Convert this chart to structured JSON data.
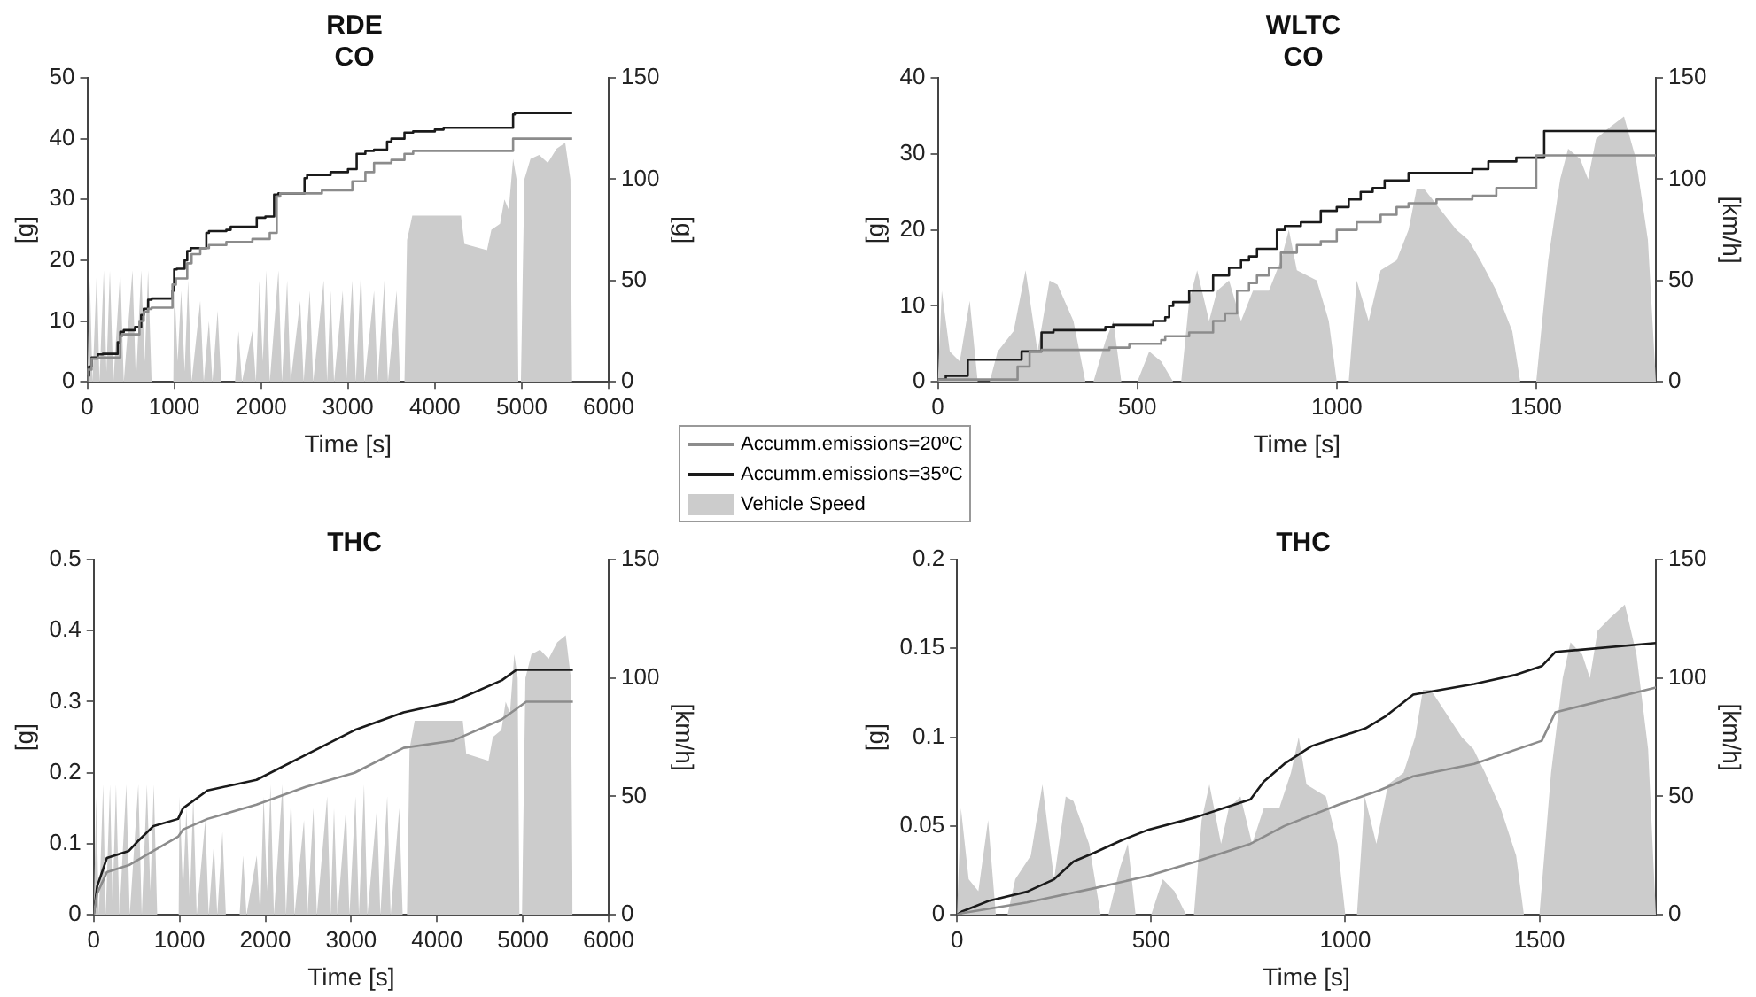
{
  "chart_data": [
    {
      "type": "line",
      "title": "RDE",
      "subtitle": "CO",
      "xlabel": "Time [s]",
      "ylabel": "[g]",
      "y2label": "[g]",
      "xlim": [
        0,
        6000
      ],
      "xticks": [
        0,
        1000,
        2000,
        3000,
        4000,
        5000,
        6000
      ],
      "ylim": [
        0,
        50
      ],
      "yticks": [
        0,
        10,
        20,
        30,
        40,
        50
      ],
      "y2lim": [
        0,
        150
      ],
      "y2ticks": [
        0,
        50,
        100,
        150
      ],
      "grid": false,
      "legend": "bottom right",
      "marker": "none",
      "series": [
        {
          "name": "Accumm.emissions=20ºC",
          "type": "step",
          "color": "#8c8c8c",
          "x": [
            0,
            50,
            120,
            380,
            400,
            600,
            650,
            700,
            740,
            980,
            1020,
            1150,
            1200,
            1300,
            1400,
            1600,
            1900,
            2100,
            2180,
            2220,
            2700,
            3050,
            3200,
            3300,
            3500,
            3650,
            3750,
            4900,
            4920,
            5580
          ],
          "values": [
            0,
            2,
            3.8,
            4,
            7.5,
            7.8,
            10,
            11.5,
            12,
            12.2,
            16,
            17,
            19.5,
            21,
            22,
            22.5,
            23,
            23.5,
            24.5,
            30.5,
            31,
            31.5,
            33,
            34.5,
            36,
            36.5,
            37.5,
            38,
            40,
            40
          ]
        },
        {
          "name": "Accumm.emissions=35ºC",
          "type": "step",
          "color": "#1a1a1a",
          "x": [
            0,
            20,
            50,
            120,
            180,
            350,
            380,
            420,
            550,
            620,
            650,
            700,
            740,
            980,
            1000,
            1030,
            1120,
            1150,
            1190,
            1370,
            1400,
            1600,
            1650,
            1950,
            2050,
            2150,
            2200,
            2500,
            2530,
            2800,
            3000,
            3100,
            3200,
            3300,
            3450,
            3500,
            3650,
            3750,
            4000,
            4100,
            4900,
            4920,
            5580
          ],
          "values": [
            0,
            1,
            2.5,
            4,
            4.5,
            4.6,
            6.5,
            8.2,
            8.5,
            9,
            11,
            12,
            13.5,
            13.7,
            15,
            18.5,
            18.6,
            20,
            21.5,
            22,
            24.5,
            24.8,
            25,
            25.5,
            27,
            27.2,
            30.8,
            31,
            33.5,
            34,
            34.5,
            35,
            37.5,
            38,
            38.2,
            39.5,
            40,
            41,
            41.2,
            41.5,
            41.8,
            44,
            44.2
          ]
        },
        {
          "name": "Vehicle Speed",
          "type": "area",
          "axis": "y2",
          "color": "#cccccc",
          "x": [
            0,
            30,
            60,
            110,
            140,
            190,
            220,
            260,
            300,
            380,
            420,
            520,
            560,
            620,
            660,
            700,
            740,
            800,
            990,
            1000,
            1040,
            1080,
            1120,
            1160,
            1200,
            1300,
            1340,
            1400,
            1440,
            1500,
            1540,
            1700,
            1740,
            1780,
            1900,
            1940,
            1980,
            2020,
            2060,
            2100,
            2200,
            2240,
            2300,
            2340,
            2450,
            2490,
            2560,
            2600,
            2720,
            2760,
            2800,
            2840,
            2940,
            2980,
            3050,
            3090,
            3150,
            3190,
            3300,
            3340,
            3420,
            3460,
            3560,
            3600,
            3650,
            3680,
            3740,
            4300,
            4340,
            4600,
            4650,
            4750,
            4800,
            4850,
            4900,
            4940,
            4960,
            4990,
            5030,
            5100,
            5200,
            5300,
            5400,
            5500,
            5560,
            5580
          ],
          "values": [
            0,
            50,
            0,
            55,
            0,
            55,
            5,
            55,
            0,
            55,
            0,
            55,
            0,
            55,
            10,
            55,
            0,
            0,
            0,
            50,
            10,
            45,
            5,
            50,
            0,
            40,
            0,
            30,
            0,
            35,
            0,
            0,
            25,
            0,
            25,
            0,
            50,
            10,
            55,
            0,
            55,
            0,
            50,
            0,
            40,
            0,
            45,
            0,
            50,
            0,
            45,
            0,
            45,
            0,
            50,
            0,
            55,
            0,
            45,
            0,
            50,
            0,
            45,
            0,
            0,
            70,
            82,
            82,
            68,
            65,
            75,
            78,
            90,
            85,
            110,
            100,
            0,
            0,
            100,
            110,
            112,
            108,
            115,
            118,
            100,
            0
          ]
        }
      ]
    },
    {
      "type": "line",
      "title": "WLTC",
      "subtitle": "CO",
      "xlabel": "Time [s]",
      "ylabel": "[g]",
      "y2label": "[km/h]",
      "xlim": [
        0,
        1800
      ],
      "xticks": [
        0,
        500,
        1000,
        1500
      ],
      "ylim": [
        0,
        40
      ],
      "yticks": [
        0,
        10,
        20,
        30,
        40
      ],
      "y2lim": [
        0,
        150
      ],
      "y2ticks": [
        0,
        50,
        100,
        150
      ],
      "grid": false,
      "marker": "none",
      "series": [
        {
          "type": "step",
          "color": "#8c8c8c",
          "x": [
            0,
            200,
            230,
            260,
            430,
            480,
            560,
            570,
            630,
            690,
            720,
            750,
            780,
            800,
            830,
            860,
            900,
            960,
            1000,
            1050,
            1110,
            1150,
            1180,
            1250,
            1340,
            1400,
            1500,
            1520,
            1800
          ],
          "values": [
            0,
            0.3,
            2,
            4,
            4.2,
            4.5,
            5,
            5.5,
            6,
            6.5,
            8,
            9,
            12,
            13,
            14,
            15,
            17,
            18,
            18.5,
            20,
            21,
            22,
            23,
            23.5,
            24,
            24.5,
            25.5,
            29.8,
            29.8
          ]
        },
        {
          "type": "step",
          "color": "#1a1a1a",
          "x": [
            0,
            20,
            75,
            210,
            260,
            290,
            420,
            440,
            540,
            570,
            580,
            590,
            630,
            690,
            730,
            760,
            780,
            800,
            850,
            870,
            910,
            960,
            1000,
            1030,
            1060,
            1090,
            1120,
            1180,
            1340,
            1380,
            1450,
            1520,
            1530,
            1800
          ],
          "values": [
            0.2,
            0.3,
            0.8,
            2.9,
            4,
            6.5,
            6.8,
            7.2,
            7.5,
            8,
            8.5,
            10,
            10.5,
            12,
            14,
            15,
            16,
            16.5,
            17.5,
            20,
            20.5,
            21,
            22.5,
            23,
            24,
            25,
            25.5,
            26.5,
            27.5,
            28,
            29,
            29.5,
            33,
            33
          ]
        },
        {
          "type": "area",
          "axis": "y2",
          "color": "#cccccc",
          "x": [
            0,
            10,
            30,
            55,
            80,
            100,
            130,
            150,
            190,
            220,
            250,
            280,
            300,
            340,
            370,
            390,
            420,
            440,
            460,
            500,
            530,
            560,
            590,
            610,
            630,
            650,
            680,
            700,
            730,
            760,
            790,
            830,
            860,
            880,
            900,
            950,
            980,
            1000,
            1030,
            1050,
            1080,
            1110,
            1150,
            1180,
            1200,
            1220,
            1260,
            1300,
            1330,
            1360,
            1400,
            1440,
            1460,
            1500,
            1530,
            1560,
            1580,
            1610,
            1630,
            1650,
            1680,
            1720,
            1750,
            1780,
            1800
          ],
          "values": [
            0,
            45,
            15,
            10,
            40,
            0,
            0,
            15,
            25,
            55,
            15,
            50,
            48,
            30,
            0,
            0,
            20,
            30,
            0,
            0,
            15,
            10,
            0,
            0,
            40,
            55,
            30,
            45,
            50,
            30,
            45,
            45,
            60,
            75,
            55,
            50,
            30,
            0,
            0,
            50,
            30,
            55,
            60,
            75,
            95,
            95,
            85,
            75,
            70,
            60,
            45,
            25,
            0,
            0,
            60,
            100,
            115,
            110,
            100,
            120,
            125,
            131,
            110,
            70,
            0
          ]
        }
      ]
    },
    {
      "type": "line",
      "title": "THC",
      "xlabel": "Time [s]",
      "ylabel": "[g]",
      "y2label": "[km/h]",
      "xlim": [
        0,
        6000
      ],
      "xticks": [
        0,
        1000,
        2000,
        3000,
        4000,
        5000,
        6000
      ],
      "ylim": [
        0,
        0.5
      ],
      "yticks": [
        0,
        0.1,
        0.2,
        0.3,
        0.4,
        0.5
      ],
      "y2lim": [
        0,
        150
      ],
      "y2ticks": [
        0,
        50,
        100,
        150
      ],
      "grid": false,
      "marker": "none",
      "series": [
        {
          "type": "line",
          "color": "#8c8c8c",
          "x": [
            0,
            40,
            154,
            411,
            697,
            983,
            1040,
            1326,
            1897,
            2469,
            3040,
            3611,
            4183,
            4754,
            4926,
            5040,
            5583
          ],
          "values": [
            0,
            0.03,
            0.06,
            0.07,
            0.09,
            0.11,
            0.12,
            0.135,
            0.155,
            0.18,
            0.2,
            0.235,
            0.245,
            0.275,
            0.29,
            0.3,
            0.3
          ]
        },
        {
          "type": "line",
          "color": "#1a1a1a",
          "x": [
            0,
            40,
            154,
            411,
            526,
            697,
            983,
            1040,
            1326,
            1897,
            2469,
            3040,
            3611,
            4183,
            4754,
            4926,
            5583
          ],
          "values": [
            0,
            0.04,
            0.08,
            0.09,
            0.105,
            0.125,
            0.135,
            0.15,
            0.175,
            0.19,
            0.225,
            0.26,
            0.285,
            0.3,
            0.33,
            0.345,
            0.345
          ]
        },
        {
          "type": "area",
          "axis": "y2",
          "color": "#cccccc",
          "x": [
            0,
            30,
            60,
            110,
            140,
            190,
            220,
            260,
            300,
            380,
            420,
            520,
            560,
            620,
            660,
            700,
            740,
            800,
            990,
            1000,
            1040,
            1080,
            1120,
            1160,
            1200,
            1300,
            1340,
            1400,
            1440,
            1500,
            1540,
            1700,
            1740,
            1780,
            1900,
            1940,
            1980,
            2020,
            2060,
            2100,
            2200,
            2240,
            2300,
            2340,
            2450,
            2490,
            2560,
            2600,
            2720,
            2760,
            2800,
            2840,
            2940,
            2980,
            3050,
            3090,
            3150,
            3190,
            3300,
            3340,
            3420,
            3460,
            3560,
            3600,
            3650,
            3680,
            3740,
            4300,
            4340,
            4600,
            4650,
            4750,
            4800,
            4850,
            4900,
            4940,
            4960,
            4990,
            5030,
            5100,
            5200,
            5300,
            5400,
            5500,
            5560,
            5580
          ],
          "values": [
            0,
            50,
            0,
            55,
            0,
            55,
            5,
            55,
            0,
            55,
            0,
            55,
            0,
            55,
            10,
            55,
            0,
            0,
            0,
            50,
            10,
            45,
            5,
            50,
            0,
            40,
            0,
            30,
            0,
            35,
            0,
            0,
            25,
            0,
            25,
            0,
            50,
            10,
            55,
            0,
            55,
            0,
            50,
            0,
            40,
            0,
            45,
            0,
            50,
            0,
            45,
            0,
            45,
            0,
            50,
            0,
            55,
            0,
            45,
            0,
            50,
            0,
            45,
            0,
            0,
            70,
            82,
            82,
            68,
            65,
            75,
            78,
            90,
            85,
            110,
            100,
            0,
            0,
            100,
            110,
            112,
            108,
            115,
            118,
            100,
            0
          ]
        }
      ]
    },
    {
      "type": "line",
      "title": "THC",
      "xlabel": "Time [s]",
      "ylabel": "[g]",
      "y2label": "[km/h]",
      "xlim": [
        0,
        1800
      ],
      "xticks": [
        0,
        500,
        1000,
        1500
      ],
      "ylim": [
        0,
        0.2
      ],
      "yticks": [
        0,
        0.05,
        0.1,
        0.15,
        0.2
      ],
      "y2lim": [
        0,
        150
      ],
      "y2ticks": [
        0,
        50,
        100,
        150
      ],
      "grid": false,
      "marker": "none",
      "series": [
        {
          "type": "line",
          "color": "#8c8c8c",
          "x": [
            0,
            14,
            180,
            354,
            494,
            616,
            756,
            843,
            983,
            1087,
            1175,
            1332,
            1506,
            1541,
            1800
          ],
          "values": [
            0,
            0.001,
            0.007,
            0.015,
            0.022,
            0.03,
            0.04,
            0.05,
            0.062,
            0.07,
            0.078,
            0.085,
            0.098,
            0.114,
            0.128
          ]
        },
        {
          "type": "line",
          "color": "#1a1a1a",
          "x": [
            0,
            14,
            84,
            180,
            250,
            300,
            354,
            424,
            494,
            616,
            686,
            756,
            790,
            843,
            913,
            983,
            1052,
            1105,
            1175,
            1332,
            1436,
            1506,
            1541,
            1800
          ],
          "values": [
            0,
            0.002,
            0.008,
            0.013,
            0.02,
            0.03,
            0.035,
            0.042,
            0.048,
            0.055,
            0.06,
            0.065,
            0.075,
            0.085,
            0.095,
            0.1,
            0.105,
            0.112,
            0.124,
            0.13,
            0.135,
            0.14,
            0.148,
            0.153
          ]
        },
        {
          "type": "area",
          "axis": "y2",
          "color": "#cccccc",
          "x": [
            0,
            10,
            30,
            55,
            80,
            100,
            130,
            150,
            190,
            220,
            250,
            280,
            300,
            340,
            370,
            390,
            420,
            440,
            460,
            500,
            530,
            560,
            590,
            610,
            630,
            650,
            680,
            700,
            730,
            760,
            790,
            830,
            860,
            880,
            900,
            950,
            980,
            1000,
            1030,
            1050,
            1080,
            1110,
            1150,
            1180,
            1200,
            1220,
            1260,
            1300,
            1330,
            1360,
            1400,
            1440,
            1460,
            1500,
            1530,
            1560,
            1580,
            1610,
            1630,
            1650,
            1680,
            1720,
            1750,
            1780,
            1800
          ],
          "values": [
            0,
            45,
            15,
            10,
            40,
            0,
            0,
            15,
            25,
            55,
            15,
            50,
            48,
            30,
            0,
            0,
            20,
            30,
            0,
            0,
            15,
            10,
            0,
            0,
            40,
            55,
            30,
            45,
            50,
            30,
            45,
            45,
            60,
            75,
            55,
            50,
            30,
            0,
            0,
            50,
            30,
            55,
            60,
            75,
            95,
            95,
            85,
            75,
            70,
            60,
            45,
            25,
            0,
            0,
            60,
            100,
            115,
            110,
            100,
            120,
            125,
            131,
            110,
            70,
            0
          ]
        }
      ]
    }
  ]
}
